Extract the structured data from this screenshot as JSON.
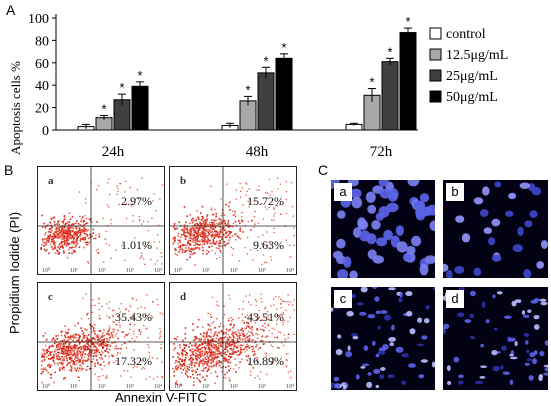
{
  "panels": {
    "a": "A",
    "b": "B",
    "c": "C"
  },
  "chart_data": {
    "type": "bar",
    "ylabel": "Apoptosis cells %",
    "ylim": [
      0,
      100
    ],
    "yticks": [
      0,
      20,
      40,
      60,
      80,
      100
    ],
    "categories": [
      "24h",
      "48h",
      "72h"
    ],
    "series": [
      {
        "name": "control",
        "color": "#ffffff",
        "values": [
          3,
          4,
          5
        ],
        "errors": [
          2,
          2,
          1
        ]
      },
      {
        "name": "12.5μg/mL",
        "color": "#a8a8a8",
        "values": [
          11,
          26,
          31
        ],
        "errors": [
          2,
          4,
          6
        ]
      },
      {
        "name": "25μg/mL",
        "color": "#404040",
        "values": [
          27,
          51,
          61
        ],
        "errors": [
          5,
          5,
          3
        ]
      },
      {
        "name": "50μg/mL",
        "color": "#000000",
        "values": [
          39,
          64,
          87
        ],
        "errors": [
          4,
          4,
          4
        ]
      }
    ],
    "significance": [
      [
        false,
        true,
        true,
        true
      ],
      [
        false,
        true,
        true,
        true
      ],
      [
        false,
        true,
        true,
        true
      ]
    ],
    "significance_marker": "*",
    "legend_position": "right"
  },
  "flow": {
    "ylabel": "Propidium Iodide (PI)",
    "xlabel": "Annexin V-FITC",
    "plots": [
      {
        "letter": "a",
        "upper_right": "2.97%",
        "lower_right": "1.01%",
        "density": 0.2
      },
      {
        "letter": "b",
        "upper_right": "15.72%",
        "lower_right": "9.63%",
        "density": 0.45
      },
      {
        "letter": "c",
        "upper_right": "35.43%",
        "lower_right": "17.32%",
        "density": 0.65
      },
      {
        "letter": "d",
        "upper_right": "43.51%",
        "lower_right": "16.89%",
        "density": 0.85
      }
    ]
  },
  "micro": {
    "images": [
      {
        "letter": "a",
        "style": "round"
      },
      {
        "letter": "b",
        "style": "sparse"
      },
      {
        "letter": "c",
        "style": "fragment"
      },
      {
        "letter": "d",
        "style": "fragment2"
      }
    ]
  }
}
